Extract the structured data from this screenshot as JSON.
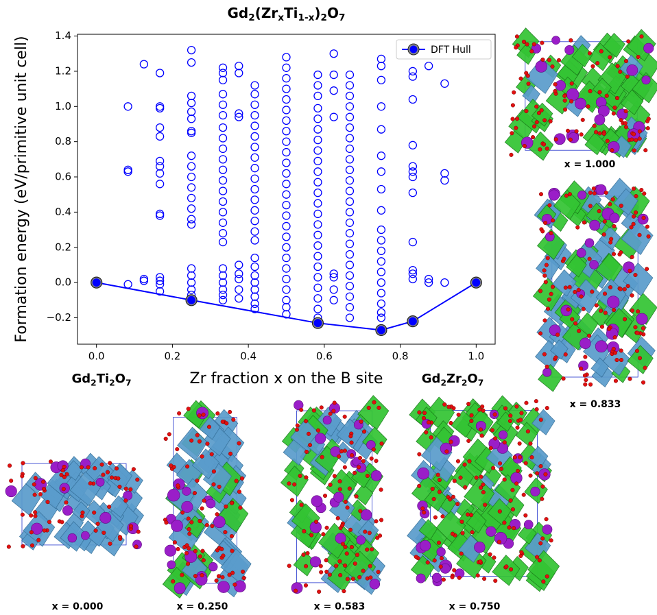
{
  "chart_data": {
    "type": "scatter",
    "title": [
      "Gd",
      "2",
      "(Zr",
      "x",
      "Ti",
      "1-x",
      ")",
      "2",
      "O",
      "7"
    ],
    "x_label": "Zr fraction x on the B site",
    "y_label": "Formation energy (eV/primitive unit cell)",
    "xlim": [
      -0.05,
      1.05
    ],
    "ylim": [
      -0.35,
      1.41
    ],
    "xticks": [
      {
        "value": 0,
        "label": "0.0"
      },
      0.2,
      0.4,
      0.6,
      0.8,
      {
        "value": 1,
        "label": "1.0"
      }
    ],
    "yticks": [
      {
        "value": -0.2,
        "label": "−0.2"
      },
      {
        "value": 0,
        "label": "0.0"
      },
      0.2,
      0.4,
      0.6,
      0.8,
      {
        "value": 1,
        "label": "1.0"
      },
      1.2,
      1.4
    ],
    "legend": "upper right",
    "series": [
      {
        "color": "#0000ff",
        "marker": "open",
        "x": [
          0.083,
          0.083,
          0.083,
          0.083,
          0.125,
          0.125,
          0.125,
          0.167,
          0.167,
          0.167,
          0.167,
          0.167,
          0.167,
          0.167,
          0.167,
          0.167,
          0.167,
          0.167,
          0.167,
          0.167,
          0.167,
          0.167,
          0.25,
          0.25,
          0.25,
          0.25,
          0.25,
          0.25,
          0.25,
          0.25,
          0.25,
          0.25,
          0.25,
          0.25,
          0.25,
          0.25,
          0.25,
          0.25,
          0.25,
          0.25,
          0.25,
          0.25,
          0.25,
          0.333,
          0.333,
          0.333,
          0.333,
          0.333,
          0.333,
          0.333,
          0.333,
          0.333,
          0.333,
          0.333,
          0.333,
          0.333,
          0.333,
          0.333,
          0.333,
          0.333,
          0.333,
          0.333,
          0.333,
          0.333,
          0.333,
          0.333,
          0.333,
          0.375,
          0.375,
          0.375,
          0.375,
          0.375,
          0.375,
          0.375,
          0.375,
          0.375,
          0.417,
          0.417,
          0.417,
          0.417,
          0.417,
          0.417,
          0.417,
          0.417,
          0.417,
          0.417,
          0.417,
          0.417,
          0.417,
          0.417,
          0.417,
          0.417,
          0.417,
          0.417,
          0.417,
          0.417,
          0.417,
          0.417,
          0.417,
          0.417,
          0.5,
          0.5,
          0.5,
          0.5,
          0.5,
          0.5,
          0.5,
          0.5,
          0.5,
          0.5,
          0.5,
          0.5,
          0.5,
          0.5,
          0.5,
          0.5,
          0.5,
          0.5,
          0.5,
          0.5,
          0.5,
          0.5,
          0.5,
          0.5,
          0.5,
          0.5,
          0.583,
          0.583,
          0.583,
          0.583,
          0.583,
          0.583,
          0.583,
          0.583,
          0.583,
          0.583,
          0.583,
          0.583,
          0.583,
          0.583,
          0.583,
          0.583,
          0.583,
          0.583,
          0.583,
          0.583,
          0.583,
          0.583,
          0.583,
          0.583,
          0.583,
          0.625,
          0.625,
          0.625,
          0.625,
          0.625,
          0.625,
          0.625,
          0.625,
          0.667,
          0.667,
          0.667,
          0.667,
          0.667,
          0.667,
          0.667,
          0.667,
          0.667,
          0.667,
          0.667,
          0.667,
          0.667,
          0.667,
          0.667,
          0.667,
          0.667,
          0.667,
          0.667,
          0.667,
          0.667,
          0.667,
          0.667,
          0.667,
          0.75,
          0.75,
          0.75,
          0.75,
          0.75,
          0.75,
          0.75,
          0.75,
          0.75,
          0.75,
          0.75,
          0.75,
          0.75,
          0.75,
          0.75,
          0.75,
          0.75,
          0.75,
          0.75,
          0.833,
          0.833,
          0.833,
          0.833,
          0.833,
          0.833,
          0.833,
          0.833,
          0.833,
          0.833,
          0.833,
          0.833,
          0.875,
          0.875,
          0.875,
          0.917,
          0.917,
          0.917,
          0.917
        ],
        "values": [
          1.0,
          0.64,
          0.63,
          -0.01,
          1.24,
          0.02,
          0.01,
          1.19,
          1.0,
          0.99,
          0.88,
          0.83,
          0.69,
          0.66,
          0.62,
          0.56,
          0.39,
          0.38,
          0.03,
          0.01,
          -0.01,
          -0.05,
          1.32,
          1.25,
          1.06,
          1.02,
          0.97,
          0.93,
          0.86,
          0.85,
          0.72,
          0.66,
          0.6,
          0.54,
          0.48,
          0.42,
          0.36,
          0.33,
          0.08,
          0.04,
          0.0,
          -0.04,
          -0.07,
          1.22,
          1.19,
          1.15,
          1.07,
          1.01,
          0.95,
          0.88,
          0.82,
          0.76,
          0.7,
          0.64,
          0.58,
          0.52,
          0.46,
          0.4,
          0.34,
          0.28,
          0.23,
          0.08,
          0.04,
          0.0,
          -0.04,
          -0.07,
          -0.1,
          1.23,
          1.19,
          0.96,
          0.94,
          0.1,
          0.05,
          0.02,
          -0.04,
          -0.09,
          1.12,
          1.07,
          1.01,
          0.95,
          0.89,
          0.83,
          0.77,
          0.71,
          0.65,
          0.59,
          0.53,
          0.47,
          0.41,
          0.35,
          0.29,
          0.24,
          0.14,
          0.09,
          0.04,
          0.0,
          -0.04,
          -0.08,
          -0.12,
          -0.15,
          1.28,
          1.22,
          1.16,
          1.1,
          1.04,
          0.98,
          0.92,
          0.86,
          0.8,
          0.74,
          0.68,
          0.62,
          0.56,
          0.5,
          0.44,
          0.38,
          0.32,
          0.26,
          0.2,
          0.14,
          0.08,
          0.02,
          -0.04,
          -0.1,
          -0.14,
          -0.18,
          1.18,
          1.12,
          1.06,
          0.99,
          0.93,
          0.87,
          0.81,
          0.75,
          0.69,
          0.63,
          0.57,
          0.51,
          0.45,
          0.39,
          0.33,
          0.27,
          0.21,
          0.15,
          0.09,
          0.03,
          -0.03,
          -0.09,
          -0.15,
          -0.2,
          -0.23,
          1.3,
          1.18,
          1.09,
          0.94,
          0.05,
          0.03,
          -0.04,
          -0.1,
          1.18,
          1.12,
          1.06,
          1.0,
          0.94,
          0.88,
          0.82,
          0.76,
          0.7,
          0.64,
          0.58,
          0.52,
          0.46,
          0.4,
          0.34,
          0.28,
          0.22,
          0.16,
          0.1,
          0.04,
          -0.02,
          -0.08,
          -0.14,
          -0.2,
          1.27,
          1.23,
          1.15,
          1.0,
          0.87,
          0.72,
          0.63,
          0.53,
          0.41,
          0.3,
          0.24,
          0.18,
          0.12,
          0.06,
          0.0,
          -0.06,
          -0.12,
          -0.17,
          -0.2,
          1.2,
          1.17,
          1.04,
          0.78,
          0.66,
          0.63,
          0.6,
          0.51,
          0.23,
          0.07,
          0.05,
          0.02,
          1.23,
          0.02,
          0.0,
          1.13,
          0.62,
          0.58,
          0.0
        ]
      },
      {
        "name": "DFT Hull",
        "color": "#0000ff",
        "marker": "filled",
        "line": true,
        "x": [
          0,
          0.25,
          0.583,
          0.75,
          0.833,
          1.0
        ],
        "values": [
          0,
          -0.1,
          -0.23,
          -0.27,
          -0.22,
          0
        ]
      }
    ]
  },
  "end_labels": [
    [
      "Gd",
      "2",
      "Ti",
      "2",
      "O",
      "7"
    ],
    [
      "Gd",
      "2",
      "Zr",
      "2",
      "O",
      "7"
    ]
  ],
  "structure_labels": [
    "x = 1.000",
    "x = 0.833",
    "x = 0.000",
    "x = 0.250",
    "x = 0.583",
    "x = 0.750"
  ]
}
